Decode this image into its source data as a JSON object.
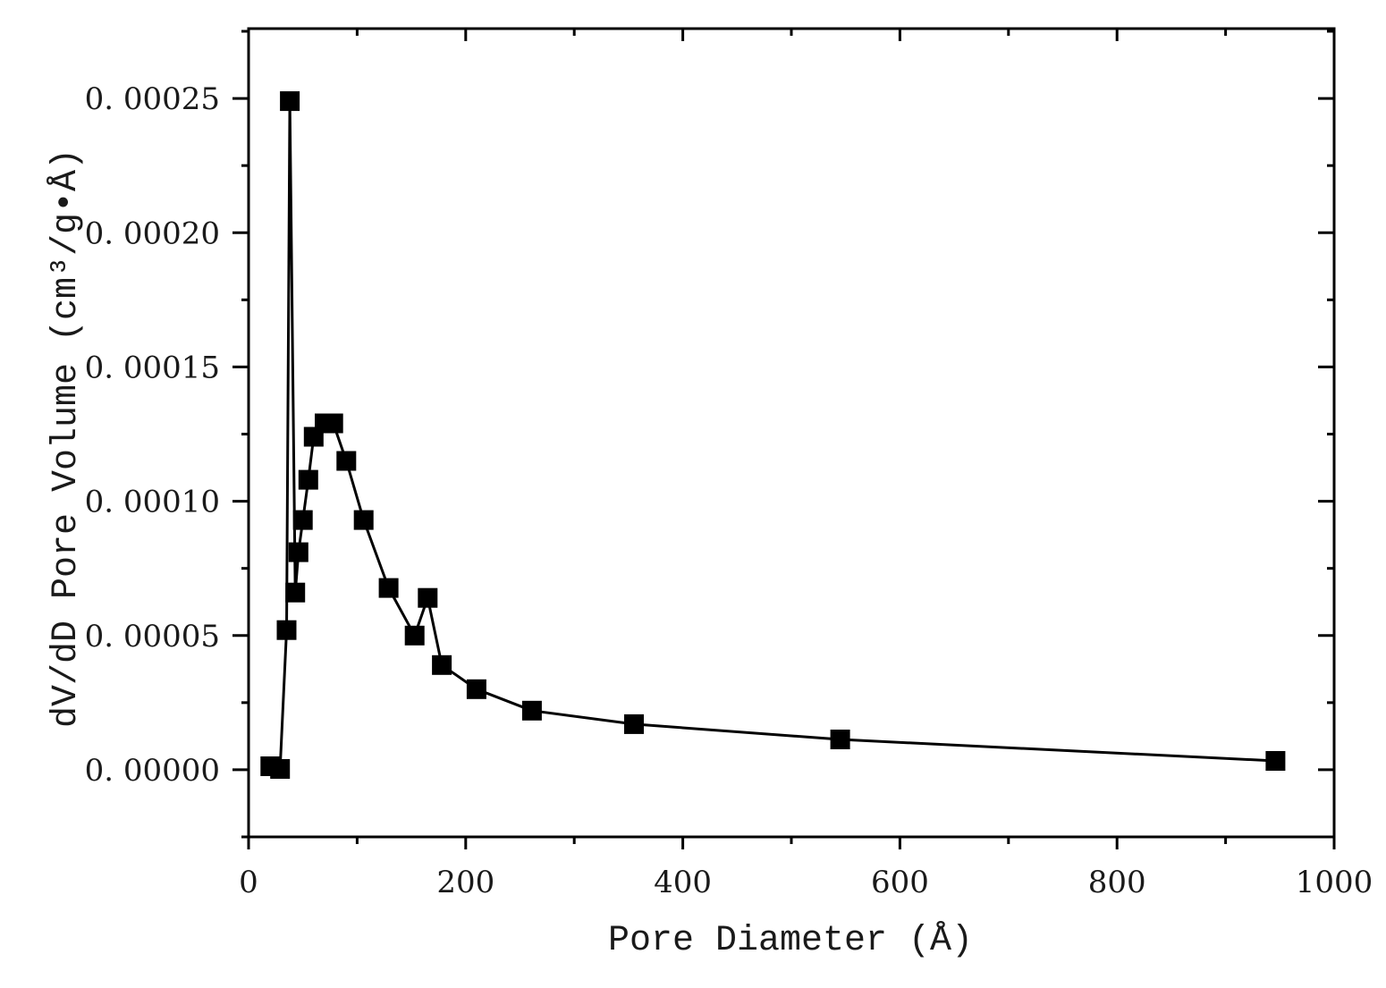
{
  "chart_data": {
    "type": "line",
    "title": "",
    "xlabel": "Pore Diameter (Å)",
    "ylabel": "dV/dD Pore Volume (cm³/g•Å)",
    "xlim": [
      0,
      1000
    ],
    "ylim": [
      -2.5e-05,
      0.000276
    ],
    "x_ticks": [
      0,
      200,
      400,
      600,
      800,
      1000
    ],
    "x_tick_labels": [
      "0",
      "200",
      "400",
      "600",
      "800",
      "1000"
    ],
    "x_minor_step": 100,
    "y_ticks": [
      0.0,
      5e-05,
      0.0001,
      0.00015,
      0.0002,
      0.00025
    ],
    "y_tick_labels": [
      "0. 00000",
      "0. 00005",
      "0. 00010",
      "0. 00015",
      "0. 00020",
      "0. 00025"
    ],
    "y_minor_step": 2.5e-05,
    "grid": false,
    "legend": null,
    "series": [
      {
        "name": "dV/dD Pore Volume",
        "marker": "square",
        "color": "#000000",
        "x": [
          20,
          29,
          35,
          38,
          43,
          46,
          50,
          55,
          60,
          70,
          78,
          90,
          106,
          129,
          153,
          165,
          178,
          210,
          261,
          355,
          545,
          946
        ],
        "y": [
          1.3e-06,
          3e-07,
          5.2e-05,
          0.000249,
          6.6e-05,
          8.1e-05,
          9.3e-05,
          0.000108,
          0.000124,
          0.000129,
          0.000129,
          0.000115,
          9.3e-05,
          6.77e-05,
          5e-05,
          6.4e-05,
          3.9e-05,
          3e-05,
          2.2e-05,
          1.7e-05,
          1.13e-05,
          3.3e-06
        ]
      }
    ]
  },
  "colors": {
    "axis": "#000000",
    "marker": "#000000",
    "line": "#000000",
    "background": "#ffffff"
  }
}
